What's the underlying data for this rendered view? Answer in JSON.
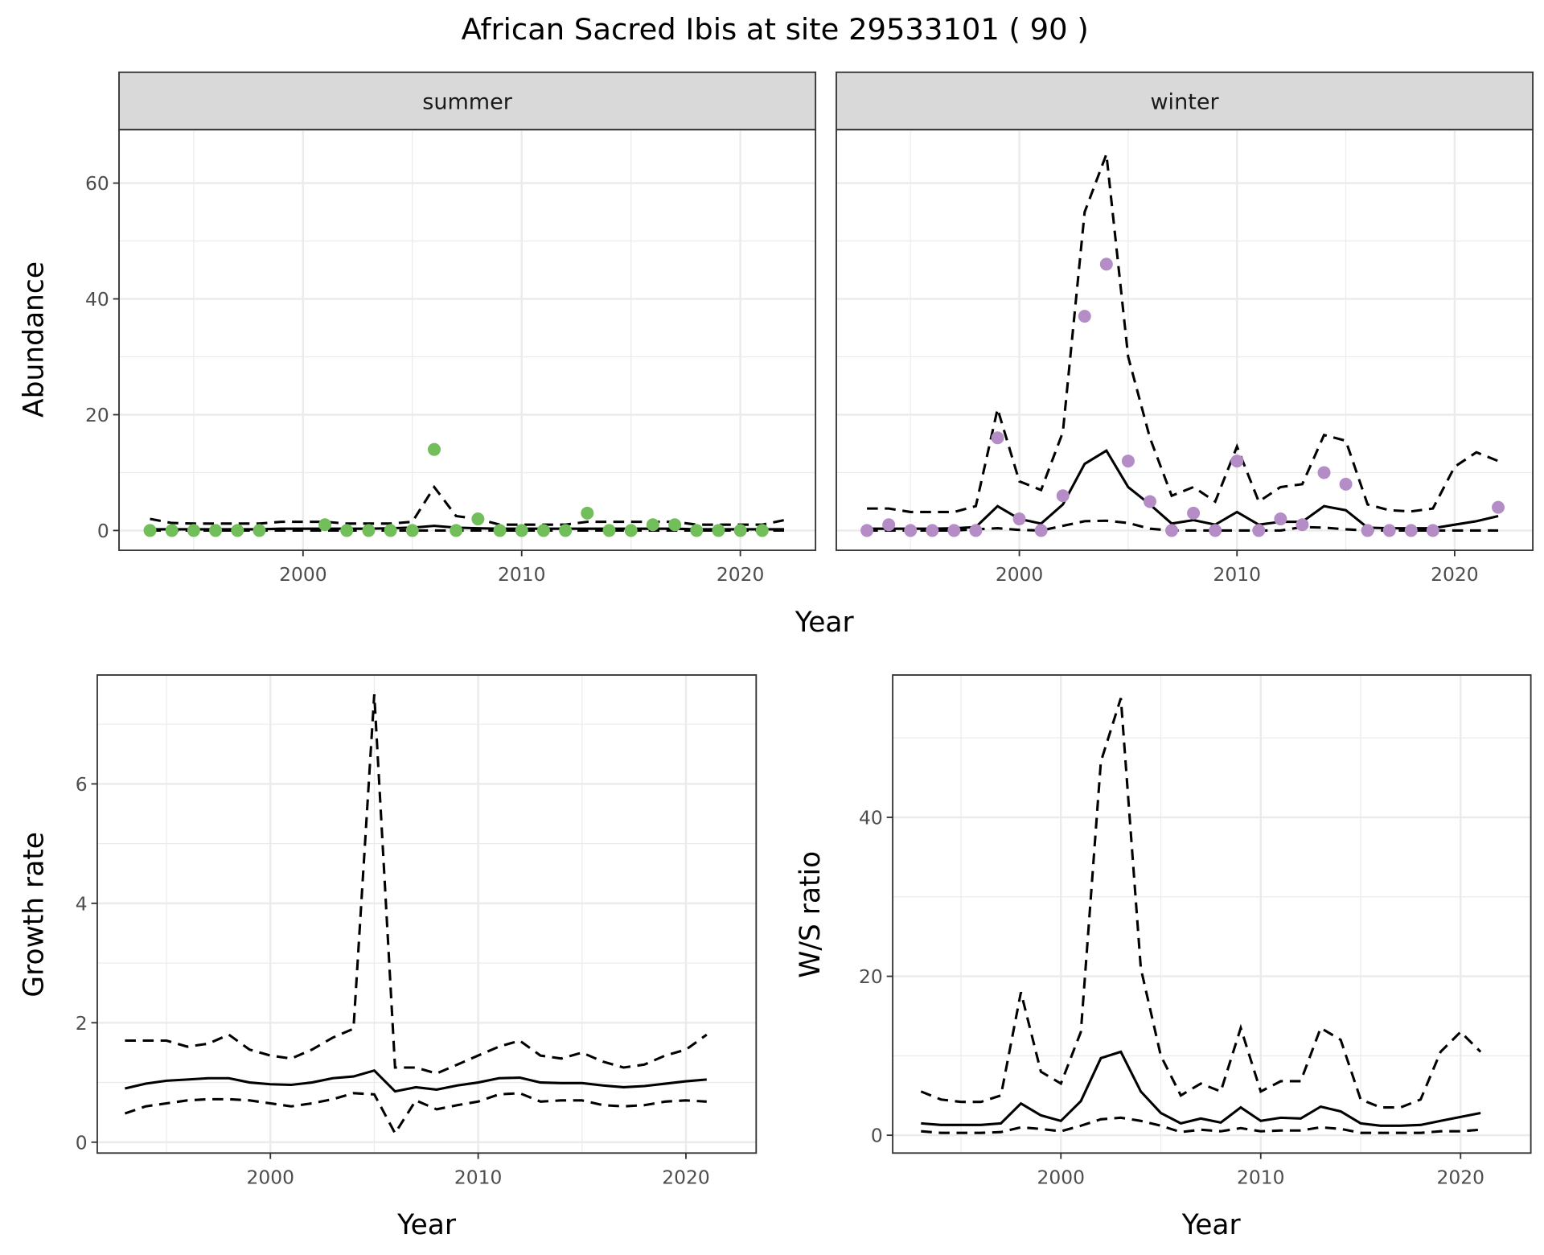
{
  "chart_data": {
    "title": "African Sacred Ibis at site 29533101 ( 90 )",
    "colors": {
      "summer": "#71BE5B",
      "winter": "#B48DC6",
      "line": "#000000",
      "grid": "#EBEBEB",
      "strip": "#D9D9D9"
    },
    "top": {
      "type": "scatter+line",
      "ylabel": "Abundance",
      "xlabel": "Year",
      "x_ticks": [
        2000,
        2010,
        2020
      ],
      "y_ticks": [
        0,
        20,
        40,
        60
      ],
      "panels": [
        {
          "strip": "summer",
          "points": {
            "x": [
              1993,
              1994,
              1995,
              1996,
              1997,
              1998,
              2001,
              2002,
              2003,
              2004,
              2005,
              2006,
              2007,
              2008,
              2009,
              2010,
              2011,
              2012,
              2013,
              2014,
              2015,
              2016,
              2017,
              2018,
              2019,
              2020,
              2021
            ],
            "y": [
              0,
              0,
              0,
              0,
              0,
              0,
              1,
              0,
              0,
              0,
              0,
              14,
              0,
              2,
              0,
              0,
              0,
              0,
              3,
              0,
              0,
              1,
              1,
              0,
              0,
              0,
              0
            ]
          },
          "line_x": [
            1993,
            1994,
            1995,
            1996,
            1997,
            1998,
            1999,
            2000,
            2001,
            2002,
            2003,
            2004,
            2005,
            2006,
            2007,
            2008,
            2009,
            2010,
            2011,
            2012,
            2013,
            2014,
            2015,
            2016,
            2017,
            2018,
            2019,
            2020,
            2021,
            2022
          ],
          "mean": [
            0.2,
            0.2,
            0.2,
            0.2,
            0.2,
            0.2,
            0.3,
            0.3,
            0.3,
            0.3,
            0.3,
            0.4,
            0.5,
            0.8,
            0.5,
            0.4,
            0.3,
            0.3,
            0.3,
            0.3,
            0.3,
            0.3,
            0.3,
            0.3,
            0.3,
            0.2,
            0.2,
            0.2,
            0.2,
            0.2
          ],
          "upper": [
            2.0,
            1.3,
            1.2,
            1.2,
            1.2,
            1.2,
            1.5,
            1.5,
            1.5,
            1.2,
            1.2,
            1.2,
            1.5,
            7.5,
            2.5,
            2.0,
            1.0,
            1.0,
            1.0,
            1.0,
            1.5,
            1.5,
            1.5,
            1.5,
            1.5,
            1.0,
            1.0,
            1.0,
            1.0,
            1.8
          ],
          "lower": [
            0,
            0,
            0,
            0,
            0,
            0,
            0,
            0,
            0,
            0,
            0,
            0,
            0,
            0,
            0,
            0,
            0,
            0,
            0,
            0,
            0,
            0,
            0,
            0,
            0,
            0,
            0,
            0,
            0,
            0
          ]
        },
        {
          "strip": "winter",
          "points": {
            "x": [
              1993,
              1994,
              1995,
              1996,
              1997,
              1998,
              1999,
              2000,
              2001,
              2002,
              2003,
              2004,
              2005,
              2006,
              2007,
              2008,
              2009,
              2010,
              2011,
              2012,
              2013,
              2014,
              2015,
              2016,
              2017,
              2018,
              2019,
              2022
            ],
            "y": [
              0,
              1,
              0,
              0,
              0,
              0,
              16,
              2,
              0,
              6,
              37,
              46,
              12,
              5,
              0,
              3,
              0,
              12,
              0,
              2,
              1,
              10,
              8,
              0,
              0,
              0,
              0,
              4
            ]
          },
          "line_x": [
            1993,
            1994,
            1995,
            1996,
            1997,
            1998,
            1999,
            2000,
            2001,
            2002,
            2003,
            2004,
            2005,
            2006,
            2007,
            2008,
            2009,
            2010,
            2011,
            2012,
            2013,
            2014,
            2015,
            2016,
            2017,
            2018,
            2019,
            2020,
            2021,
            2022
          ],
          "mean": [
            0.3,
            0.3,
            0.3,
            0.3,
            0.4,
            0.6,
            4.2,
            2.0,
            1.2,
            4.5,
            11.5,
            13.8,
            7.5,
            4.5,
            1.2,
            1.8,
            1.0,
            3.2,
            1.0,
            1.5,
            1.5,
            4.2,
            3.5,
            0.5,
            0.4,
            0.4,
            0.4,
            1.0,
            1.6,
            2.5
          ],
          "upper": [
            3.8,
            3.8,
            3.2,
            3.2,
            3.2,
            4.2,
            21,
            8.5,
            7,
            17,
            55,
            65,
            30,
            16,
            6,
            7.5,
            5,
            14.5,
            5,
            7.5,
            8,
            16.5,
            15.5,
            4.5,
            3.5,
            3.3,
            3.8,
            11,
            13.5,
            12
          ],
          "lower": [
            0,
            0,
            0,
            0,
            0,
            0.2,
            0.4,
            0.1,
            0,
            0.8,
            1.6,
            1.7,
            1.3,
            0.3,
            0,
            0,
            0,
            0,
            0,
            0,
            0.6,
            0.5,
            0.2,
            0,
            0,
            0,
            0,
            0,
            0,
            0
          ]
        }
      ]
    },
    "growth": {
      "type": "line",
      "ylabel": "Growth rate",
      "xlabel": "Year",
      "x_ticks": [
        2000,
        2010,
        2020
      ],
      "y_ticks": [
        0,
        2,
        4,
        6
      ],
      "x": [
        1993,
        1994,
        1995,
        1996,
        1997,
        1998,
        1999,
        2000,
        2001,
        2002,
        2003,
        2004,
        2005,
        2006,
        2007,
        2008,
        2009,
        2010,
        2011,
        2012,
        2013,
        2014,
        2015,
        2016,
        2017,
        2018,
        2019,
        2020,
        2021
      ],
      "mean": [
        0.9,
        0.98,
        1.03,
        1.05,
        1.07,
        1.07,
        1.0,
        0.97,
        0.96,
        1.0,
        1.07,
        1.1,
        1.2,
        0.85,
        0.92,
        0.88,
        0.95,
        1.0,
        1.07,
        1.08,
        1.0,
        0.99,
        0.99,
        0.95,
        0.92,
        0.94,
        0.98,
        1.02,
        1.05
      ],
      "upper": [
        1.7,
        1.7,
        1.7,
        1.6,
        1.65,
        1.8,
        1.55,
        1.45,
        1.4,
        1.55,
        1.75,
        1.9,
        7.5,
        1.25,
        1.25,
        1.15,
        1.3,
        1.45,
        1.6,
        1.7,
        1.45,
        1.4,
        1.5,
        1.35,
        1.25,
        1.3,
        1.45,
        1.55,
        1.8
      ],
      "lower": [
        0.48,
        0.6,
        0.65,
        0.7,
        0.72,
        0.72,
        0.7,
        0.65,
        0.6,
        0.65,
        0.72,
        0.82,
        0.8,
        0.15,
        0.7,
        0.55,
        0.62,
        0.68,
        0.8,
        0.82,
        0.68,
        0.7,
        0.7,
        0.62,
        0.6,
        0.62,
        0.68,
        0.7,
        0.68
      ]
    },
    "ratio": {
      "type": "line",
      "ylabel": "W/S ratio",
      "xlabel": "Year",
      "x_ticks": [
        2000,
        2010,
        2020
      ],
      "y_ticks": [
        0,
        20,
        40
      ],
      "x": [
        1993,
        1994,
        1995,
        1996,
        1997,
        1998,
        1999,
        2000,
        2001,
        2002,
        2003,
        2004,
        2005,
        2006,
        2007,
        2008,
        2009,
        2010,
        2011,
        2012,
        2013,
        2014,
        2015,
        2016,
        2017,
        2018,
        2019,
        2020,
        2021
      ],
      "mean": [
        1.5,
        1.3,
        1.3,
        1.3,
        1.5,
        4.0,
        2.5,
        1.8,
        4.3,
        9.7,
        10.5,
        5.5,
        2.8,
        1.5,
        2.1,
        1.6,
        3.5,
        1.8,
        2.2,
        2.1,
        3.6,
        3.0,
        1.5,
        1.2,
        1.2,
        1.3,
        1.8,
        2.3,
        2.8
      ],
      "upper": [
        5.5,
        4.5,
        4.2,
        4.2,
        5,
        18,
        8,
        6.5,
        13,
        47,
        55,
        21,
        10,
        5,
        6.5,
        5.5,
        13.5,
        5.5,
        6.8,
        6.8,
        13.5,
        12,
        4.5,
        3.5,
        3.5,
        4.5,
        10.5,
        13,
        10.5
      ],
      "lower": [
        0.5,
        0.3,
        0.3,
        0.3,
        0.4,
        1.0,
        0.8,
        0.5,
        1.2,
        2.0,
        2.2,
        1.8,
        1.2,
        0.4,
        0.7,
        0.5,
        0.9,
        0.5,
        0.6,
        0.6,
        1.0,
        0.8,
        0.3,
        0.3,
        0.3,
        0.3,
        0.5,
        0.5,
        0.7
      ]
    }
  }
}
